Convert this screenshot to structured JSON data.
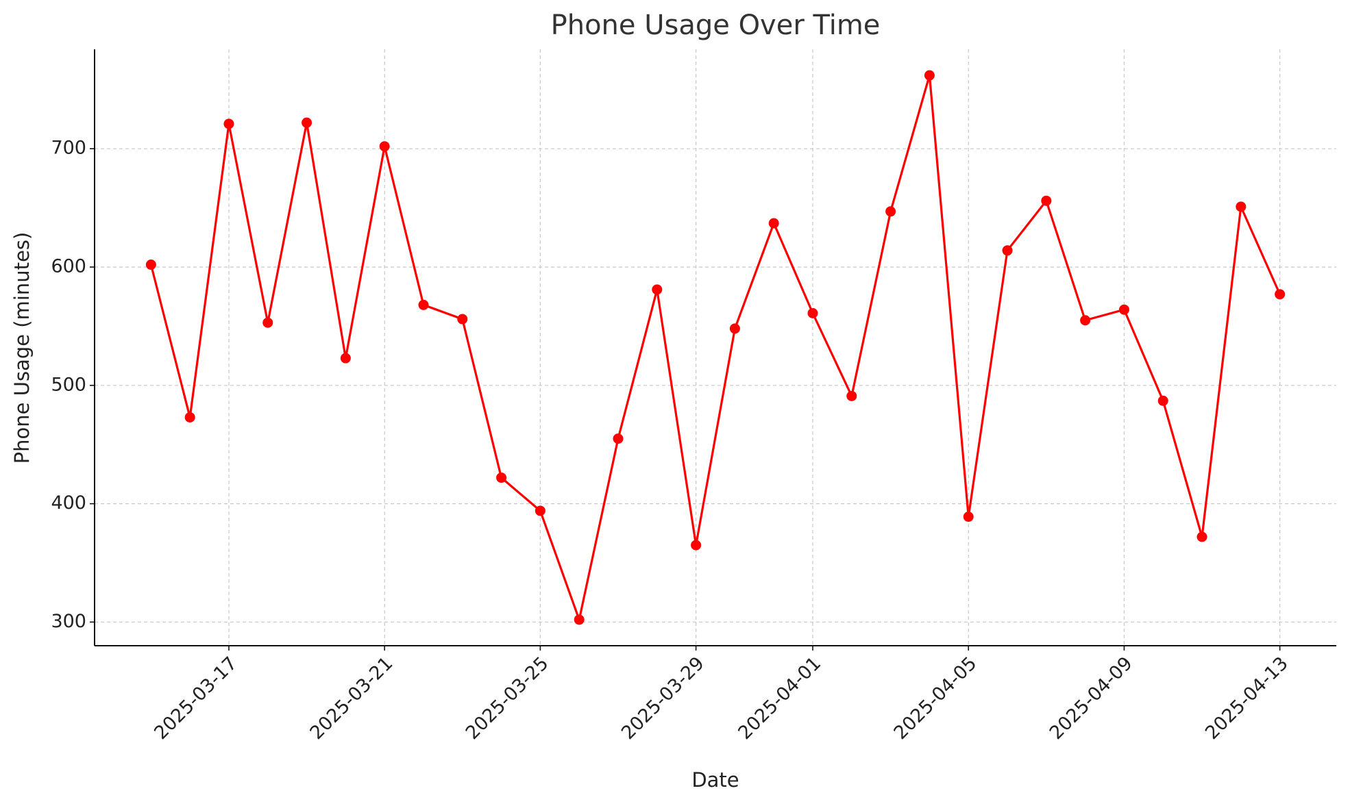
{
  "chart_data": {
    "type": "line",
    "title": "Phone Usage Over Time",
    "xlabel": "Date",
    "ylabel": "Phone Usage (minutes)",
    "x": [
      "2025-03-15",
      "2025-03-16",
      "2025-03-17",
      "2025-03-18",
      "2025-03-19",
      "2025-03-20",
      "2025-03-21",
      "2025-03-22",
      "2025-03-23",
      "2025-03-24",
      "2025-03-25",
      "2025-03-26",
      "2025-03-27",
      "2025-03-28",
      "2025-03-29",
      "2025-03-30",
      "2025-03-31",
      "2025-04-01",
      "2025-04-02",
      "2025-04-03",
      "2025-04-04",
      "2025-04-05",
      "2025-04-06",
      "2025-04-07",
      "2025-04-08",
      "2025-04-09",
      "2025-04-10",
      "2025-04-11",
      "2025-04-12",
      "2025-04-13"
    ],
    "values": [
      602,
      473,
      721,
      553,
      722,
      523,
      702,
      568,
      556,
      422,
      394,
      302,
      455,
      581,
      365,
      548,
      637,
      561,
      491,
      647,
      762,
      389,
      614,
      656,
      555,
      564,
      487,
      372,
      651,
      577
    ],
    "color": "#ff0000",
    "xticks": [
      "2025-03-17",
      "2025-03-21",
      "2025-03-25",
      "2025-03-29",
      "2025-04-01",
      "2025-04-05",
      "2025-04-09",
      "2025-04-13"
    ],
    "ylim": [
      280,
      784
    ],
    "yticks": [
      300,
      400,
      500,
      600,
      700
    ],
    "grid": true
  }
}
